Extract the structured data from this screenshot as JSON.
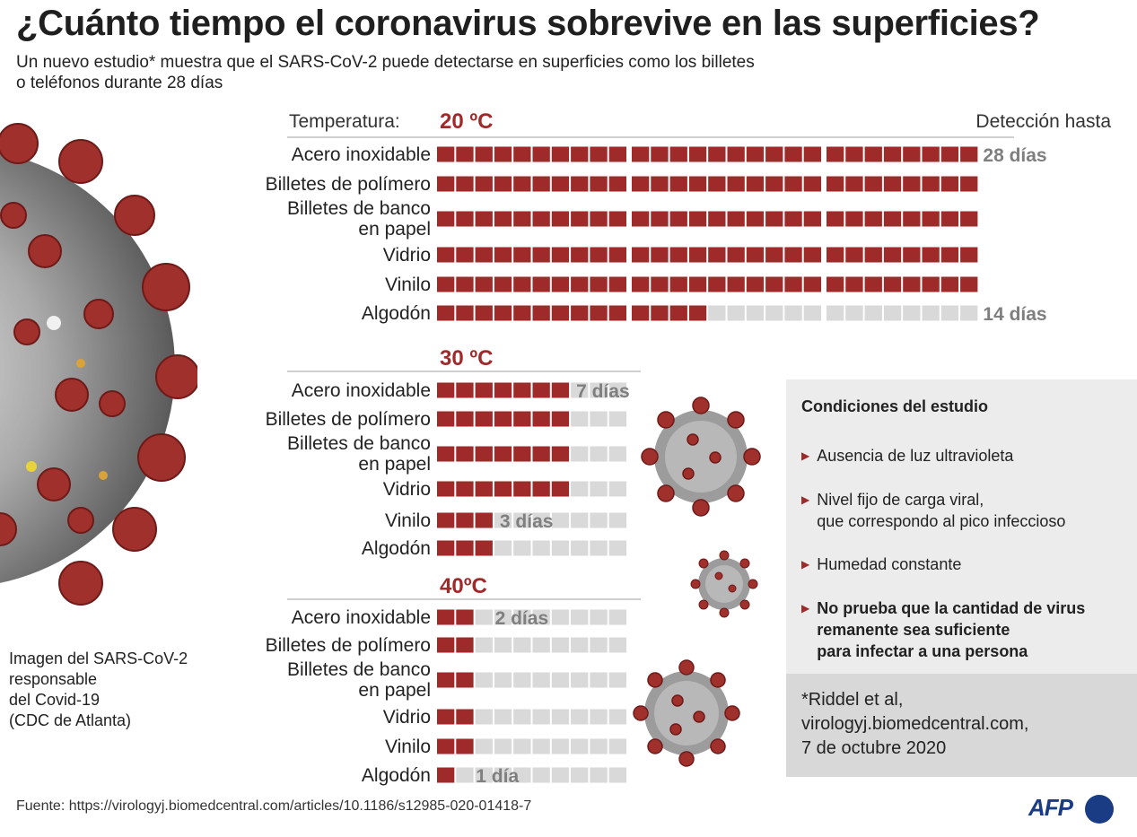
{
  "title": "¿Cuánto tiempo el coronavirus sobrevive en las superficies?",
  "subtitle": [
    "Un nuevo estudio* muestra que el SARS-CoV-2  puede detectarse en superficies como los billetes",
    "o teléfonos durante 28 días"
  ],
  "chart_data": {
    "type": "bar",
    "temperature_label": "Temperatura:",
    "detection_label": "Detección hasta",
    "categories": [
      "Acero inoxidable",
      "Billetes de polímero",
      "Billetes de banco\nen papel",
      "Vidrio",
      "Vinilo",
      "Algodón"
    ],
    "unit": "días",
    "groups": [
      {
        "name": "20 ºC",
        "max_days": 28,
        "values": [
          28,
          28,
          28,
          28,
          28,
          14
        ],
        "annotations": [
          {
            "category": "Acero inoxidable",
            "text": "28 días"
          },
          {
            "category": "Algodón",
            "text": "14 días"
          }
        ]
      },
      {
        "name": "30 ºC",
        "max_days": 10,
        "values": [
          7,
          7,
          7,
          7,
          3,
          3
        ],
        "annotations": [
          {
            "category": "Acero inoxidable",
            "text": "7 días"
          },
          {
            "category": "Vinilo",
            "text": "3 días"
          }
        ]
      },
      {
        "name": "40ºC",
        "max_days": 10,
        "values": [
          2,
          2,
          2,
          2,
          2,
          1
        ],
        "annotations": [
          {
            "category": "Acero inoxidable",
            "text": "2 días"
          },
          {
            "category": "Algodón",
            "text": "1 día"
          }
        ]
      }
    ],
    "colors": {
      "filled": "#9e2a2a",
      "empty": "#d9d9d9",
      "label": "#9e2a2a",
      "annotation": "#7f7f7f"
    }
  },
  "image_caption": [
    "Imagen del SARS-CoV-2",
    "responsable",
    "del Covid-19",
    "(CDC de Atlanta)"
  ],
  "conditions": {
    "title": "Condiciones del estudio",
    "items": [
      {
        "lines": [
          "Ausencia de luz ultravioleta"
        ],
        "bold": false
      },
      {
        "lines": [
          "Nivel fijo de carga viral,",
          "que correspondo al pico infeccioso"
        ],
        "bold": false
      },
      {
        "lines": [
          "Humedad constante"
        ],
        "bold": false
      },
      {
        "lines": [
          "No prueba que la cantidad de virus",
          "remanente sea suficiente",
          "para infectar a una persona"
        ],
        "bold": true
      }
    ]
  },
  "citation": [
    "*Riddel et al,",
    "virologyj.biomedcentral.com,",
    "7 de octubre 2020"
  ],
  "source": "Fuente: https://virologyj.biomedcentral.com/articles/10.1186/s12985-020-01418-7",
  "logo": "AFP",
  "icons": {
    "bullet": "triangle-right-icon",
    "virus": "coronavirus-icon"
  }
}
